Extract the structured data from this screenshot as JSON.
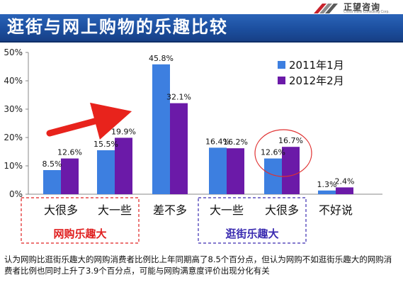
{
  "header": {
    "title": "逛街与网上购物的乐趣比较",
    "logo_text": "正望咨询",
    "logo_sub": "China Intelli Consulting Corp."
  },
  "chart_data": {
    "type": "bar",
    "title": "逛街与网上购物的乐趣比较",
    "categories": [
      "大很多",
      "大一些",
      "差不多",
      "大一些",
      "大很多",
      "不好说"
    ],
    "series": [
      {
        "name": "2011年1月",
        "values": [
          8.5,
          15.5,
          45.8,
          16.4,
          12.6,
          1.3
        ],
        "color": "#3d7fe0"
      },
      {
        "name": "2012年2月",
        "values": [
          12.6,
          19.9,
          32.1,
          16.2,
          16.7,
          2.4
        ],
        "color": "#6b1aa8"
      }
    ],
    "value_labels": [
      [
        "8.5%",
        "15.5%",
        "45.8%",
        "16.4%",
        "12.6%",
        "1.3%"
      ],
      [
        "12.6%",
        "19.9%",
        "32.1%",
        "16.2%",
        "16.7%",
        "2.4%"
      ]
    ],
    "y_ticks": [
      0,
      10,
      20,
      30,
      40,
      50
    ],
    "y_tick_labels": [
      "0%",
      "10%",
      "20%",
      "30%",
      "40%",
      "50%"
    ],
    "ylim": [
      0,
      50
    ],
    "legend_position": "top-right",
    "grid": false,
    "groups": [
      {
        "label": "网购乐趣大",
        "categories": [
          "大很多",
          "大一些"
        ],
        "color": "#e02020",
        "text_color": "#e02020"
      },
      {
        "label": "逛街乐趣大",
        "categories": [
          "大一些",
          "大很多"
        ],
        "color": "#3a2bb0",
        "text_color": "#3a2bb0"
      }
    ]
  },
  "footnote": "认为网购比逛街乐趣大的网购消费者比例比上年同期高了8.5个百分点，但认为网购不如逛街乐趣大的网购消费者比例也同时上升了3.9个百分点，可能与网购满意度评价出现分化有关"
}
